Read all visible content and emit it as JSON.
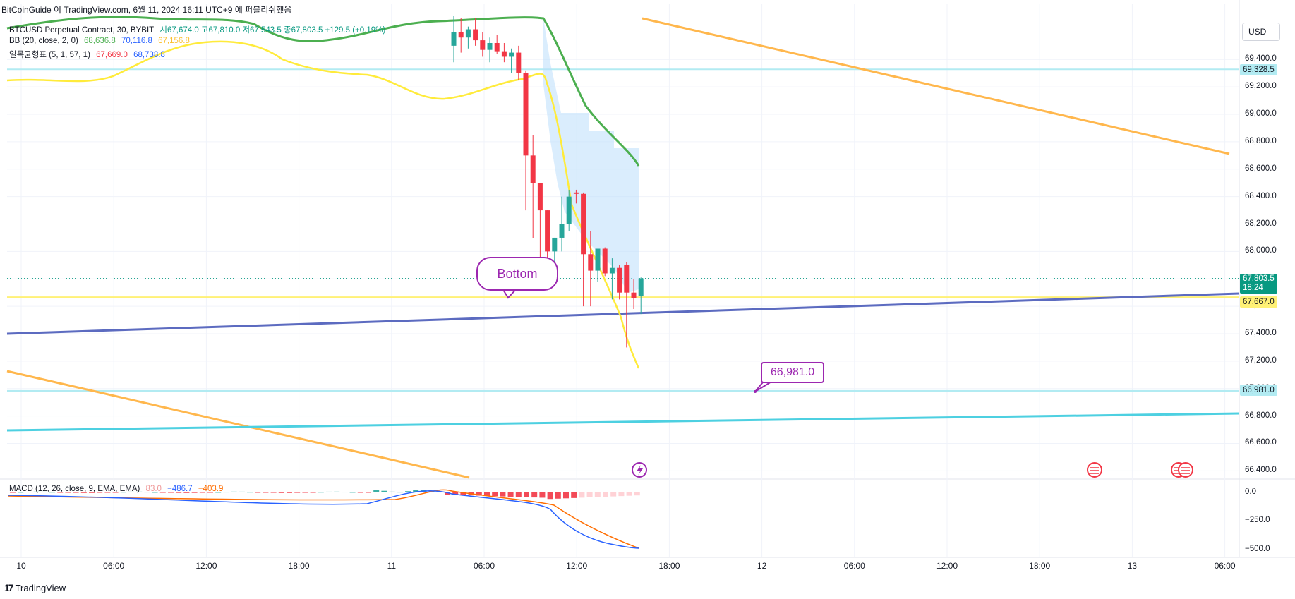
{
  "header": {
    "title": "BitCoinGuide 이 TradingView.com, 6월 11, 2024 16:11 UTC+9 에 퍼블리쉬했음"
  },
  "legend": {
    "symbol": "BTCUSD Perpetual Contract, 30, BYBIT",
    "ohlc": "시67,674.0  고67,810.0  저67,543.5  종67,803.5  +129.5 (+0.19%)",
    "bb_label": "BB (20, close, 2, 0)",
    "bb_mid": "68,636.8",
    "bb_upper": "70,116.8",
    "bb_lower": "67,156.8",
    "ichimoku_label": "일목균형표 (5, 1, 57, 1)",
    "ichimoku_v1": "67,669.0",
    "ichimoku_v2": "68,738.8",
    "macd_label": "MACD (12, 26, close, 9, EMA, EMA)",
    "macd_hist": "83.0",
    "macd_line": "−486.7",
    "macd_signal": "−403.9"
  },
  "currency_button": "USD",
  "price_tags": {
    "level_upper": "69,328.5",
    "current_price": "67,803.5",
    "countdown": "18:24",
    "level_yellow": "67,667.0",
    "level_lower": "66,981.0"
  },
  "annotations": {
    "bottom_callout": "Bottom",
    "price_callout": "66,981.0"
  },
  "macd_axis": [
    "0.0",
    "−250.0",
    "−500.0"
  ],
  "brand": "TradingView",
  "colors": {
    "up": "#26a69a",
    "down": "#f23645",
    "bb_mid": "#4caf50",
    "ichimoku": "#ffeb3b",
    "trend_orange": "#ffb74d",
    "trend_blue": "#5c6bc0",
    "trend_cyan": "#4dd0e1",
    "callout": "#9c27b0"
  },
  "chart_data": {
    "type": "candlestick",
    "title": "BTCUSD Perpetual Contract, 30, BYBIT",
    "ylim": [
      66340,
      69700
    ],
    "y_ticks": [
      66400,
      66600,
      66800,
      67000,
      67200,
      67400,
      67600,
      67800,
      68000,
      68200,
      68400,
      68600,
      68800,
      69000,
      69200,
      69400
    ],
    "x_tick_labels": [
      "10",
      "06:00",
      "12:00",
      "18:00",
      "11",
      "06:00",
      "12:00",
      "18:00",
      "12",
      "06:00",
      "12:00",
      "18:00",
      "13",
      "06:00"
    ],
    "candles_visible_tail": [
      {
        "o": 69500,
        "h": 69720,
        "l": 69380,
        "c": 69600
      },
      {
        "o": 69600,
        "h": 69700,
        "l": 69450,
        "c": 69560
      },
      {
        "o": 69560,
        "h": 69640,
        "l": 69480,
        "c": 69620
      },
      {
        "o": 69620,
        "h": 69700,
        "l": 69500,
        "c": 69540
      },
      {
        "o": 69540,
        "h": 69600,
        "l": 69420,
        "c": 69470
      },
      {
        "o": 69470,
        "h": 69560,
        "l": 69380,
        "c": 69520
      },
      {
        "o": 69520,
        "h": 69580,
        "l": 69440,
        "c": 69460
      },
      {
        "o": 69460,
        "h": 69520,
        "l": 69380,
        "c": 69420
      },
      {
        "o": 69420,
        "h": 69480,
        "l": 69300,
        "c": 69450
      },
      {
        "o": 69450,
        "h": 69500,
        "l": 69250,
        "c": 69300
      },
      {
        "o": 69300,
        "h": 69320,
        "l": 68300,
        "c": 68700
      },
      {
        "o": 68700,
        "h": 68850,
        "l": 68100,
        "c": 68500
      },
      {
        "o": 68500,
        "h": 68450,
        "l": 67900,
        "c": 68300
      },
      {
        "o": 68300,
        "h": 68300,
        "l": 67850,
        "c": 68000
      },
      {
        "o": 68000,
        "h": 68100,
        "l": 67900,
        "c": 68100
      },
      {
        "o": 68100,
        "h": 68400,
        "l": 68000,
        "c": 68200
      },
      {
        "o": 68200,
        "h": 68450,
        "l": 68150,
        "c": 68400
      },
      {
        "o": 68430,
        "h": 68450,
        "l": 68350,
        "c": 68420
      },
      {
        "o": 68420,
        "h": 68430,
        "l": 67600,
        "c": 67980
      },
      {
        "o": 67980,
        "h": 68150,
        "l": 67600,
        "c": 67860
      },
      {
        "o": 67860,
        "h": 68020,
        "l": 67780,
        "c": 68020
      },
      {
        "o": 68020,
        "h": 68030,
        "l": 67820,
        "c": 67840
      },
      {
        "o": 67840,
        "h": 67950,
        "l": 67650,
        "c": 67880
      },
      {
        "o": 67880,
        "h": 67900,
        "l": 67650,
        "c": 67700
      },
      {
        "o": 67900,
        "h": 67920,
        "l": 67300,
        "c": 67700
      },
      {
        "o": 67700,
        "h": 67800,
        "l": 67580,
        "c": 67660
      },
      {
        "o": 67674,
        "h": 67810,
        "l": 67543.5,
        "c": 67803.5
      }
    ],
    "horizontal_levels": [
      69328.5,
      67667.0,
      66981.0
    ],
    "macd": {
      "histogram": 83.0,
      "macd": -486.7,
      "signal": -403.9,
      "ylim": [
        -520,
        40
      ]
    }
  }
}
